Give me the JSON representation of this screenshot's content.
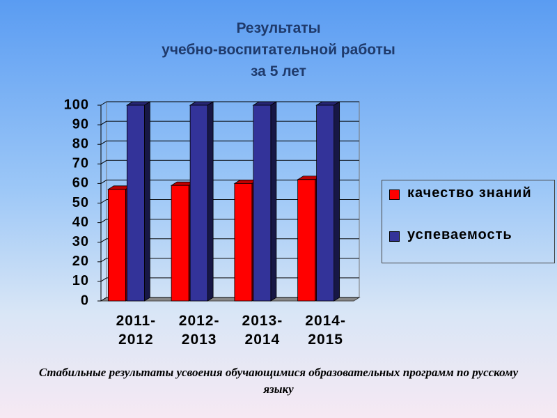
{
  "chart_data": {
    "type": "bar",
    "title": [
      "Результаты",
      "учебно-воспитательной работы",
      "за 5 лет"
    ],
    "categories": [
      "2011-2012",
      "2012-2013",
      "2013-2014",
      "2014-2015"
    ],
    "series": [
      {
        "name": "качество знаний",
        "color": "#ff0000",
        "values": [
          57,
          59,
          60,
          62
        ]
      },
      {
        "name": "успеваемость",
        "color": "#333399",
        "values": [
          100,
          100,
          100,
          100
        ]
      }
    ],
    "ylim": [
      0,
      100
    ],
    "yticks": [
      0,
      10,
      20,
      30,
      40,
      50,
      60,
      70,
      80,
      90,
      100
    ],
    "grid": true,
    "legend": "right",
    "annotation": "Стабильные результаты усвоения обучающимися образовательных программ по  русскому языку"
  }
}
